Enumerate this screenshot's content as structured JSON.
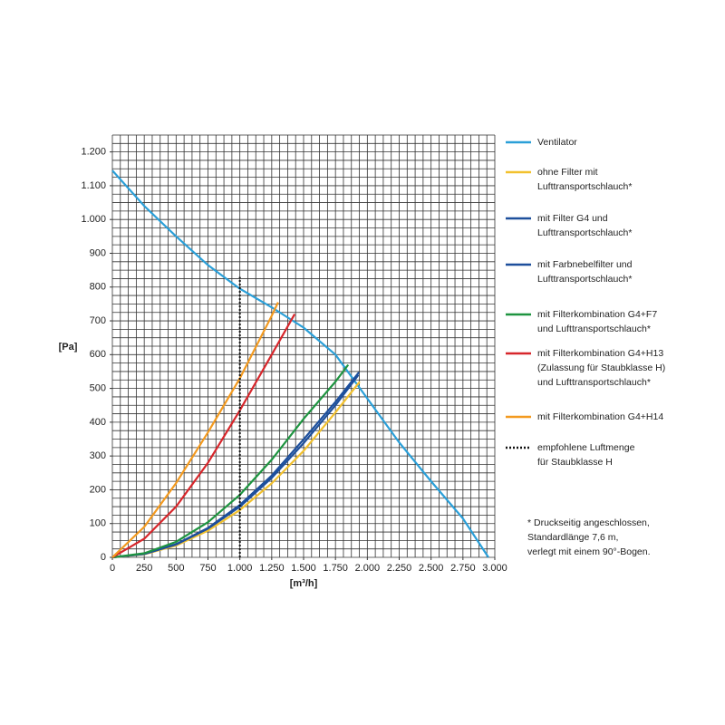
{
  "chart_data": {
    "type": "line",
    "y_label": "[Pa]",
    "x_label": "[m³/h]",
    "xlim": [
      0,
      3000
    ],
    "ylim": [
      0,
      1250
    ],
    "xticks": [
      0,
      250,
      500,
      750,
      {
        "value": 1000,
        "label": "1.000"
      },
      {
        "value": 1250,
        "label": "1.250"
      },
      {
        "value": 1500,
        "label": "1.500"
      },
      {
        "value": 1750,
        "label": "1.750"
      },
      {
        "value": 2000,
        "label": "2.000"
      },
      {
        "value": 2250,
        "label": "2.250"
      },
      {
        "value": 2500,
        "label": "2.500"
      },
      {
        "value": 2750,
        "label": "2.750"
      },
      {
        "value": 3000,
        "label": "3.000"
      }
    ],
    "yticks": [
      0,
      100,
      200,
      300,
      400,
      500,
      600,
      700,
      800,
      900,
      {
        "value": 1000,
        "label": "1.000"
      },
      {
        "value": 1100,
        "label": "1.100"
      },
      {
        "value": 1200,
        "label": "1.200"
      }
    ],
    "grid": true,
    "grid_step": {
      "x": 62.5,
      "y": 25
    },
    "series": [
      {
        "name": "Ventilator",
        "color": "#2a9fd8",
        "x": [
          0,
          250,
          500,
          750,
          1000,
          1250,
          1500,
          1750,
          2000,
          2250,
          2500,
          2750,
          2950
        ],
        "values": [
          1145,
          1040,
          950,
          865,
          795,
          740,
          680,
          600,
          470,
          340,
          225,
          115,
          0
        ]
      },
      {
        "name": "ohne Filter mit\nLufttransportschlauch*",
        "color": "#f2c12e",
        "x": [
          0,
          250,
          500,
          750,
          1000,
          1250,
          1500,
          1750,
          1940
        ],
        "values": [
          0,
          9,
          35,
          79,
          140,
          219,
          315,
          429,
          520
        ]
      },
      {
        "name": "mit Filter G4 und\nLufttransportschlauch*",
        "color": "#1d4f9c",
        "x": [
          0,
          250,
          500,
          750,
          1000,
          1250,
          1500,
          1750,
          1935
        ],
        "values": [
          0,
          10,
          39,
          87,
          155,
          242,
          349,
          460,
          548
        ]
      },
      {
        "name": "mit Farbnebelfilter und\nLufttransportschlauch*",
        "color": "#1d4f9c",
        "x": [
          0,
          250,
          500,
          750,
          1000,
          1250,
          1500,
          1750,
          1930
        ],
        "values": [
          0,
          10,
          38,
          85,
          150,
          235,
          338,
          450,
          540
        ]
      },
      {
        "name": "mit Filterkombination G4+F7\nund Lufttransportschlauch*",
        "color": "#1e9440",
        "x": [
          0,
          250,
          500,
          750,
          1000,
          1250,
          1500,
          1750,
          1850
        ],
        "values": [
          0,
          12,
          46,
          104,
          185,
          289,
          410,
          520,
          570
        ]
      },
      {
        "name": "mit Filterkombination G4+H13\n(Zulassung für Staubklasse H)\nund Lufttransportschlauch*",
        "color": "#d7262b",
        "x": [
          0,
          250,
          500,
          750,
          1000,
          1250,
          1430
        ],
        "values": [
          0,
          55,
          150,
          280,
          435,
          600,
          720
        ]
      },
      {
        "name": "mit Filterkombination G4+H14",
        "color": "#f39a1f",
        "x": [
          0,
          250,
          500,
          750,
          1000,
          1250,
          1300
        ],
        "values": [
          0,
          90,
          220,
          370,
          530,
          715,
          755
        ]
      },
      {
        "name": "empfohlene Luftmenge\nfür Staubklasse H",
        "color": "#111111",
        "dash": "dotted",
        "x": [
          1000,
          1000
        ],
        "values": [
          0,
          830
        ]
      }
    ],
    "footnote": "* Druckseitig angeschlossen,\nStandardlänge 7,6 m,\nverlegt mit einem 90°-Bogen."
  }
}
